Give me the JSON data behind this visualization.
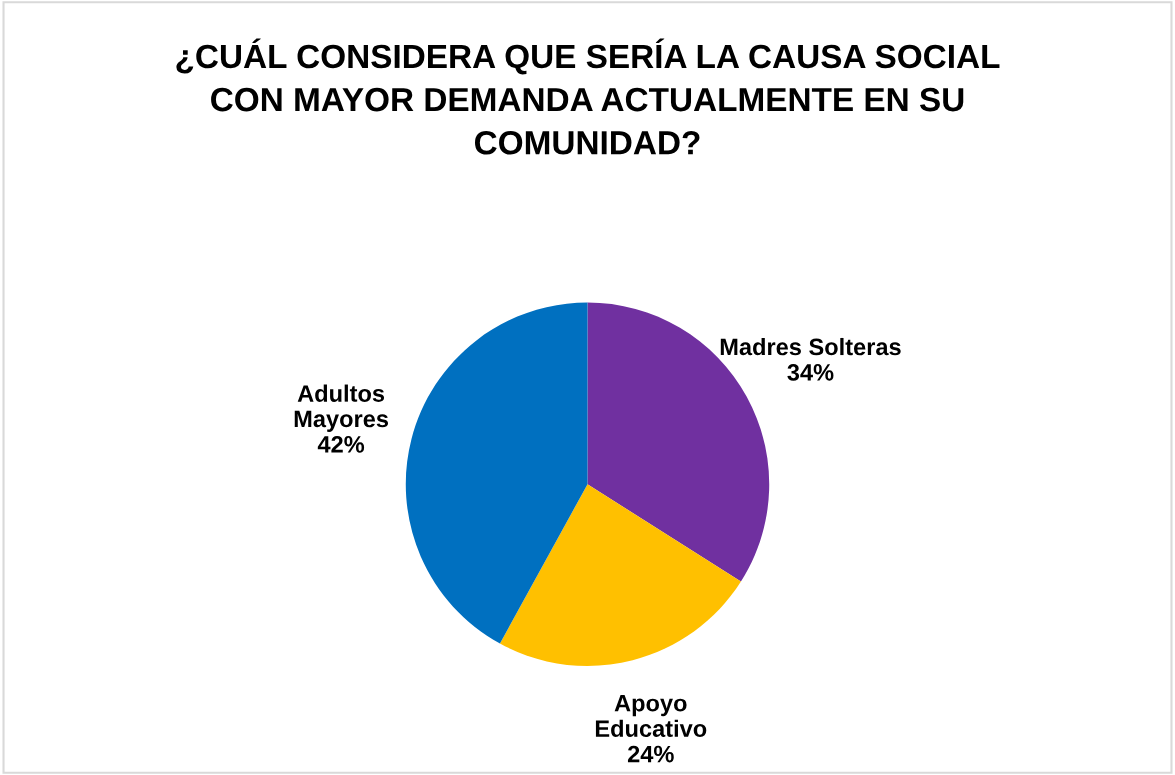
{
  "chart_data": {
    "type": "pie",
    "title": "¿CUÁL CONSIDERA QUE SERÍA LA CAUSA SOCIAL\nCON MAYOR DEMANDA ACTUALMENTE EN SU\nCOMUNIDAD?",
    "categories": [
      "Madres Solteras",
      "Apoyo\nEducativo",
      "Adultos\nMayores"
    ],
    "values": [
      34,
      24,
      42
    ],
    "colors": [
      "#7030a0",
      "#ffc000",
      "#0070c0"
    ],
    "value_labels": [
      "34%",
      "24%",
      "42%"
    ],
    "legend": false
  }
}
